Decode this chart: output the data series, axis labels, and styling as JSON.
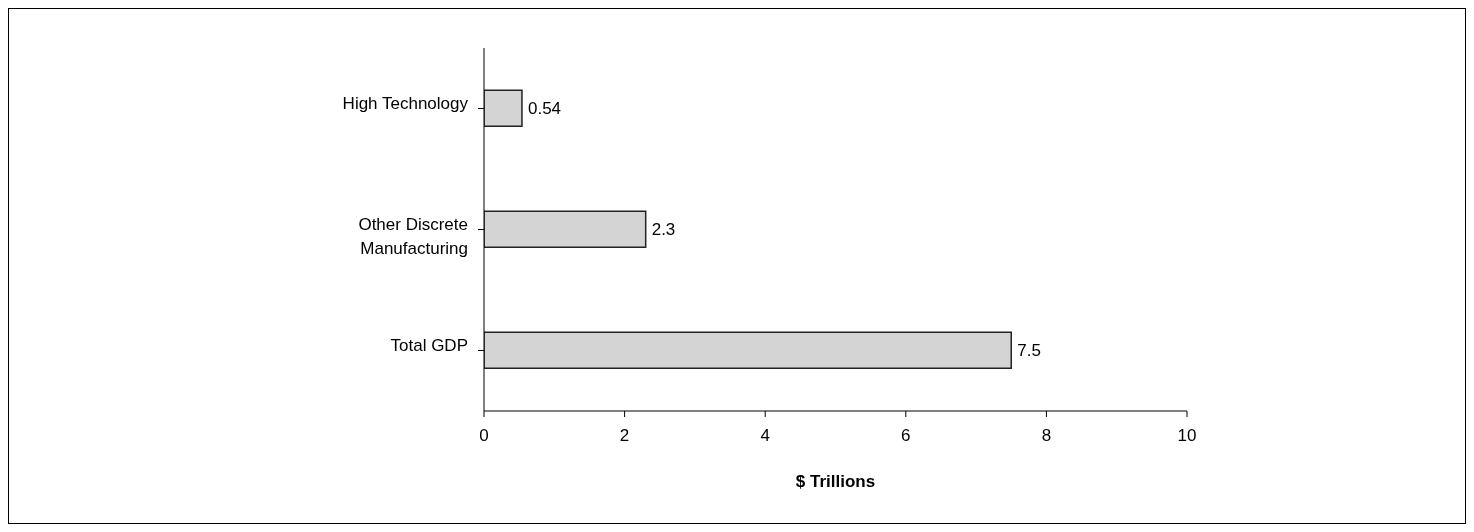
{
  "chart_data": {
    "type": "bar",
    "orientation": "horizontal",
    "categories": [
      "High Technology",
      "Other Discrete Manufacturing",
      "Total GDP"
    ],
    "values": [
      0.54,
      2.3,
      7.5
    ],
    "color": "#d4d4d4",
    "xlim": [
      0,
      10
    ],
    "xticks": [
      0,
      2,
      4,
      6,
      8,
      10
    ],
    "xlabel": "$ Trillions",
    "data_labels": true
  }
}
